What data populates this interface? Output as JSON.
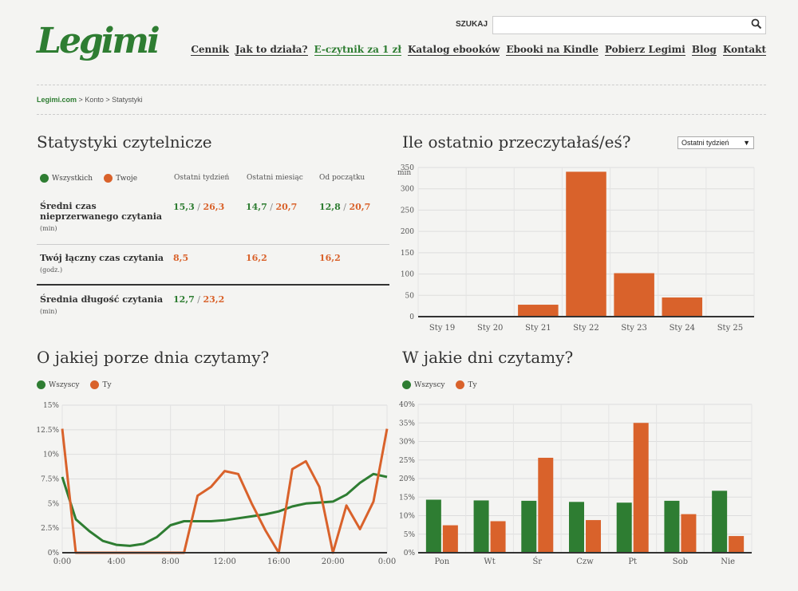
{
  "header": {
    "logo": "Legimi",
    "search_label": "SZUKAJ",
    "search_value": "",
    "nav": [
      {
        "label": "Cennik",
        "accent": false
      },
      {
        "label": "Jak to działa?",
        "accent": false
      },
      {
        "label": "E-czytnik za 1 zł",
        "accent": true
      },
      {
        "label": "Katalog ebooków",
        "accent": false
      },
      {
        "label": "Ebooki na Kindle",
        "accent": false
      },
      {
        "label": "Pobierz Legimi",
        "accent": false
      },
      {
        "label": "Blog",
        "accent": false
      },
      {
        "label": "Kontakt",
        "accent": false
      }
    ]
  },
  "breadcrumb": {
    "home": "Legimi.com",
    "items": [
      "Konto",
      "Statystyki"
    ],
    "separator": ">"
  },
  "stats": {
    "title": "Statystyki czytelnicze",
    "legend": [
      "Wszystkich",
      "Twoje"
    ],
    "columns": [
      "Ostatni tydzień",
      "Ostatni miesiąc",
      "Od początku"
    ],
    "rows": [
      {
        "label": "Średni czas nieprzerwanego czytania",
        "unit": "(min)",
        "values": [
          [
            "15,3",
            "26,3"
          ],
          [
            "14,7",
            "20,7"
          ],
          [
            "12,8",
            "20,7"
          ]
        ]
      },
      {
        "label": "Twój łączny czas czytania",
        "unit": "(godz.)",
        "values": [
          [
            "8,5"
          ],
          [
            "16,2"
          ],
          [
            "16,2"
          ]
        ]
      },
      {
        "label": "Średnia długość czytania",
        "unit": "(min)",
        "values": [
          [
            "12,7",
            "23,2"
          ]
        ]
      }
    ]
  },
  "recent": {
    "title": "Ile ostatnio przeczytałaś/eś?",
    "select_value": "Ostatni tydzień"
  },
  "time_of_day": {
    "title": "O jakiej porze dnia czytamy?",
    "legend": [
      "Wszyscy",
      "Ty"
    ]
  },
  "days": {
    "title": "W jakie dni czytamy?",
    "legend": [
      "Wszyscy",
      "Ty"
    ]
  },
  "colors": {
    "green": "#2e7d32",
    "orange": "#d9622b"
  },
  "chart_data": [
    {
      "type": "bar",
      "title": "Ile ostatnio przeczytałaś/eś?",
      "ylabel": "min",
      "categories": [
        "Sty 19",
        "Sty 20",
        "Sty 21",
        "Sty 22",
        "Sty 23",
        "Sty 24",
        "Sty 25"
      ],
      "values": [
        0,
        0,
        28,
        340,
        102,
        45,
        0
      ],
      "ylim": [
        0,
        350
      ],
      "yticks": [
        0,
        50,
        100,
        150,
        200,
        250,
        300,
        350
      ],
      "grid": true
    },
    {
      "type": "line",
      "title": "O jakiej porze dnia czytamy?",
      "x": [
        0,
        1,
        2,
        3,
        4,
        5,
        6,
        7,
        8,
        9,
        10,
        11,
        12,
        13,
        14,
        15,
        16,
        17,
        18,
        19,
        20,
        21,
        22,
        23,
        24
      ],
      "xticks": [
        "0:00",
        "4:00",
        "8:00",
        "12:00",
        "16:00",
        "20:00",
        "0:00"
      ],
      "yticks": [
        "0%",
        "2.5%",
        "5%",
        "7.5%",
        "10%",
        "12.5%",
        "15%"
      ],
      "ylim": [
        0,
        15
      ],
      "series": [
        {
          "name": "Wszyscy",
          "color": "#2e7d32",
          "values": [
            7.7,
            3.4,
            2.2,
            1.2,
            0.8,
            0.7,
            0.9,
            1.6,
            2.8,
            3.2,
            3.2,
            3.2,
            3.3,
            3.5,
            3.7,
            3.9,
            4.2,
            4.7,
            5.0,
            5.1,
            5.2,
            5.9,
            7.1,
            8.0,
            7.7
          ]
        },
        {
          "name": "Ty",
          "color": "#d9622b",
          "values": [
            12.6,
            0,
            0,
            0,
            0,
            0,
            0,
            0,
            0,
            0,
            5.8,
            6.7,
            8.3,
            8.0,
            5.0,
            2.3,
            0,
            8.5,
            9.3,
            6.7,
            0,
            4.8,
            2.4,
            5.2,
            12.6
          ]
        }
      ],
      "grid": true
    },
    {
      "type": "bar",
      "title": "W jakie dni czytamy?",
      "categories": [
        "Pon",
        "Wt",
        "Śr",
        "Czw",
        "Pt",
        "Sob",
        "Nie"
      ],
      "yticks": [
        "0%",
        "5%",
        "10%",
        "15%",
        "20%",
        "25%",
        "30%",
        "35%",
        "40%"
      ],
      "ylim": [
        0,
        40
      ],
      "series": [
        {
          "name": "Wszyscy",
          "color": "#2e7d32",
          "values": [
            14.3,
            14.1,
            14.0,
            13.7,
            13.5,
            14.0,
            16.7
          ]
        },
        {
          "name": "Ty",
          "color": "#d9622b",
          "values": [
            7.4,
            8.5,
            25.6,
            8.8,
            35.0,
            10.4,
            4.5
          ]
        }
      ],
      "grid": true
    }
  ]
}
